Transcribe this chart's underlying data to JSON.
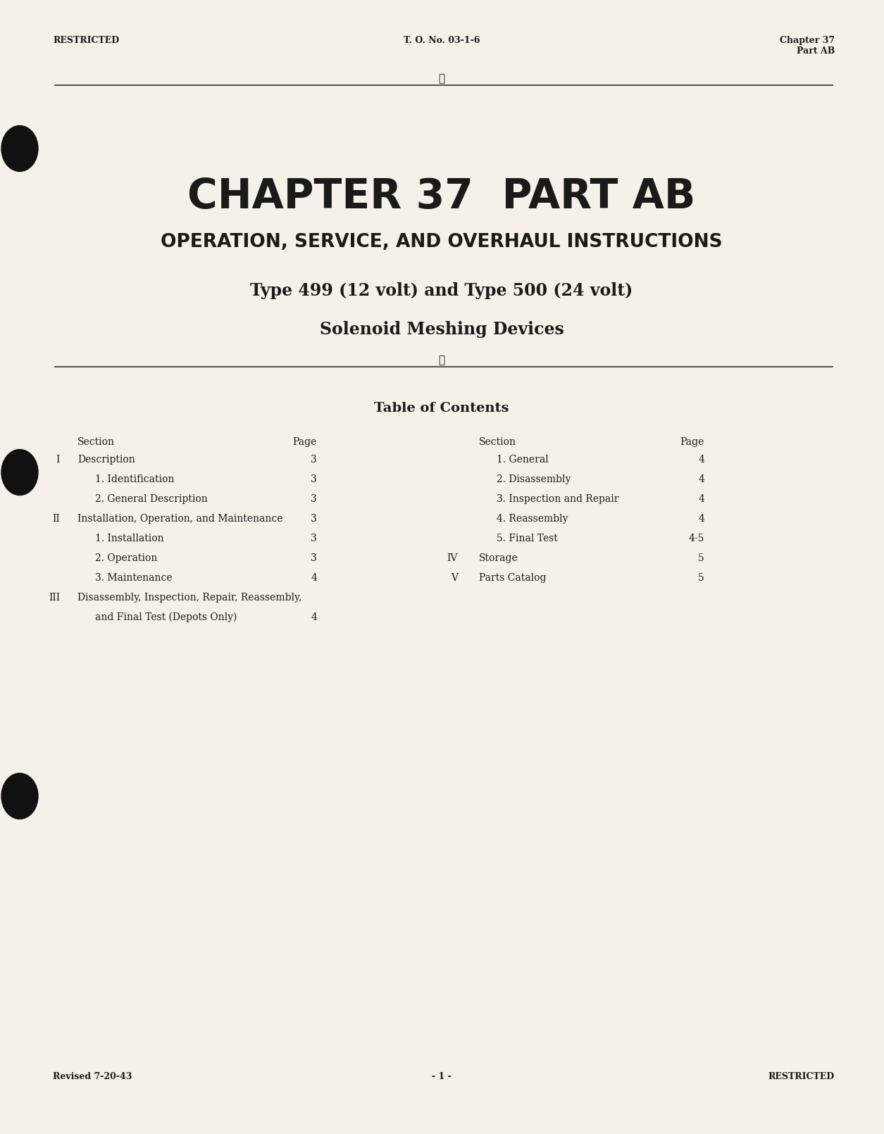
{
  "bg_color": "#f5f0e8",
  "text_color": "#1a1a1a",
  "header_left": "RESTRICTED",
  "header_center": "T. O. No. 03-1-6",
  "header_right_line1": "Chapter 37",
  "header_right_line2": "Part AB",
  "chapter_title": "CHAPTER 37  PART AB",
  "subtitle1": "OPERATION, SERVICE, AND OVERHAUL INSTRUCTIONS",
  "subtitle2": "Type 499 (12 volt) and Type 500 (24 volt)",
  "subtitle3": "Solenoid Meshing Devices",
  "toc_title": "Table of Contents",
  "footer_left": "Revised 7-20-43",
  "footer_center": "- 1 -",
  "footer_right": "RESTRICTED",
  "left_col_header1": "Section",
  "left_col_header2": "Page",
  "right_col_header1": "Section",
  "right_col_header2": "Page",
  "left_entries": [
    [
      "I",
      "Description",
      "3"
    ],
    [
      "",
      "1. Identification",
      "3"
    ],
    [
      "",
      "2. General Description",
      "3"
    ],
    [
      "II",
      "Installation, Operation, and Maintenance",
      "3"
    ],
    [
      "",
      "1. Installation",
      "3"
    ],
    [
      "",
      "2. Operation",
      "3"
    ],
    [
      "",
      "3. Maintenance",
      "4"
    ],
    [
      "III",
      "Disassembly, Inspection, Repair, Reassembly,",
      ""
    ],
    [
      "",
      "and Final Test (Depots Only)",
      "4"
    ]
  ],
  "right_entries": [
    [
      "",
      "1. General",
      "4"
    ],
    [
      "",
      "2. Disassembly",
      "4"
    ],
    [
      "",
      "3. Inspection and Repair",
      "4"
    ],
    [
      "",
      "4. Reassembly",
      "4"
    ],
    [
      "",
      "5. Final Test",
      "4-5"
    ],
    [
      "IV",
      "Storage",
      "5"
    ],
    [
      "V",
      "Parts Catalog",
      "5"
    ]
  ]
}
